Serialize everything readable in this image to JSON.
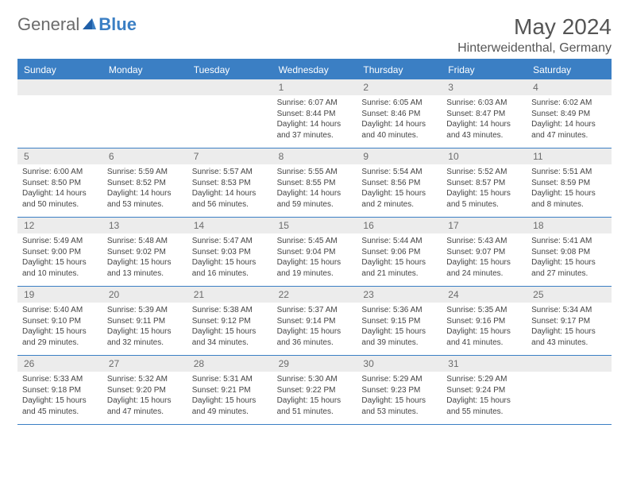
{
  "brand": {
    "part1": "General",
    "part2": "Blue"
  },
  "title": "May 2024",
  "location": "Hinterweidenthal, Germany",
  "colors": {
    "accent": "#3b7fc4",
    "dayHeaderBg": "#ececec",
    "text": "#444444",
    "titleText": "#555555"
  },
  "daysOfWeek": [
    "Sunday",
    "Monday",
    "Tuesday",
    "Wednesday",
    "Thursday",
    "Friday",
    "Saturday"
  ],
  "weeks": [
    [
      {
        "n": "",
        "sunrise": "",
        "sunset": "",
        "daylight": ""
      },
      {
        "n": "",
        "sunrise": "",
        "sunset": "",
        "daylight": ""
      },
      {
        "n": "",
        "sunrise": "",
        "sunset": "",
        "daylight": ""
      },
      {
        "n": "1",
        "sunrise": "Sunrise: 6:07 AM",
        "sunset": "Sunset: 8:44 PM",
        "daylight": "Daylight: 14 hours and 37 minutes."
      },
      {
        "n": "2",
        "sunrise": "Sunrise: 6:05 AM",
        "sunset": "Sunset: 8:46 PM",
        "daylight": "Daylight: 14 hours and 40 minutes."
      },
      {
        "n": "3",
        "sunrise": "Sunrise: 6:03 AM",
        "sunset": "Sunset: 8:47 PM",
        "daylight": "Daylight: 14 hours and 43 minutes."
      },
      {
        "n": "4",
        "sunrise": "Sunrise: 6:02 AM",
        "sunset": "Sunset: 8:49 PM",
        "daylight": "Daylight: 14 hours and 47 minutes."
      }
    ],
    [
      {
        "n": "5",
        "sunrise": "Sunrise: 6:00 AM",
        "sunset": "Sunset: 8:50 PM",
        "daylight": "Daylight: 14 hours and 50 minutes."
      },
      {
        "n": "6",
        "sunrise": "Sunrise: 5:59 AM",
        "sunset": "Sunset: 8:52 PM",
        "daylight": "Daylight: 14 hours and 53 minutes."
      },
      {
        "n": "7",
        "sunrise": "Sunrise: 5:57 AM",
        "sunset": "Sunset: 8:53 PM",
        "daylight": "Daylight: 14 hours and 56 minutes."
      },
      {
        "n": "8",
        "sunrise": "Sunrise: 5:55 AM",
        "sunset": "Sunset: 8:55 PM",
        "daylight": "Daylight: 14 hours and 59 minutes."
      },
      {
        "n": "9",
        "sunrise": "Sunrise: 5:54 AM",
        "sunset": "Sunset: 8:56 PM",
        "daylight": "Daylight: 15 hours and 2 minutes."
      },
      {
        "n": "10",
        "sunrise": "Sunrise: 5:52 AM",
        "sunset": "Sunset: 8:57 PM",
        "daylight": "Daylight: 15 hours and 5 minutes."
      },
      {
        "n": "11",
        "sunrise": "Sunrise: 5:51 AM",
        "sunset": "Sunset: 8:59 PM",
        "daylight": "Daylight: 15 hours and 8 minutes."
      }
    ],
    [
      {
        "n": "12",
        "sunrise": "Sunrise: 5:49 AM",
        "sunset": "Sunset: 9:00 PM",
        "daylight": "Daylight: 15 hours and 10 minutes."
      },
      {
        "n": "13",
        "sunrise": "Sunrise: 5:48 AM",
        "sunset": "Sunset: 9:02 PM",
        "daylight": "Daylight: 15 hours and 13 minutes."
      },
      {
        "n": "14",
        "sunrise": "Sunrise: 5:47 AM",
        "sunset": "Sunset: 9:03 PM",
        "daylight": "Daylight: 15 hours and 16 minutes."
      },
      {
        "n": "15",
        "sunrise": "Sunrise: 5:45 AM",
        "sunset": "Sunset: 9:04 PM",
        "daylight": "Daylight: 15 hours and 19 minutes."
      },
      {
        "n": "16",
        "sunrise": "Sunrise: 5:44 AM",
        "sunset": "Sunset: 9:06 PM",
        "daylight": "Daylight: 15 hours and 21 minutes."
      },
      {
        "n": "17",
        "sunrise": "Sunrise: 5:43 AM",
        "sunset": "Sunset: 9:07 PM",
        "daylight": "Daylight: 15 hours and 24 minutes."
      },
      {
        "n": "18",
        "sunrise": "Sunrise: 5:41 AM",
        "sunset": "Sunset: 9:08 PM",
        "daylight": "Daylight: 15 hours and 27 minutes."
      }
    ],
    [
      {
        "n": "19",
        "sunrise": "Sunrise: 5:40 AM",
        "sunset": "Sunset: 9:10 PM",
        "daylight": "Daylight: 15 hours and 29 minutes."
      },
      {
        "n": "20",
        "sunrise": "Sunrise: 5:39 AM",
        "sunset": "Sunset: 9:11 PM",
        "daylight": "Daylight: 15 hours and 32 minutes."
      },
      {
        "n": "21",
        "sunrise": "Sunrise: 5:38 AM",
        "sunset": "Sunset: 9:12 PM",
        "daylight": "Daylight: 15 hours and 34 minutes."
      },
      {
        "n": "22",
        "sunrise": "Sunrise: 5:37 AM",
        "sunset": "Sunset: 9:14 PM",
        "daylight": "Daylight: 15 hours and 36 minutes."
      },
      {
        "n": "23",
        "sunrise": "Sunrise: 5:36 AM",
        "sunset": "Sunset: 9:15 PM",
        "daylight": "Daylight: 15 hours and 39 minutes."
      },
      {
        "n": "24",
        "sunrise": "Sunrise: 5:35 AM",
        "sunset": "Sunset: 9:16 PM",
        "daylight": "Daylight: 15 hours and 41 minutes."
      },
      {
        "n": "25",
        "sunrise": "Sunrise: 5:34 AM",
        "sunset": "Sunset: 9:17 PM",
        "daylight": "Daylight: 15 hours and 43 minutes."
      }
    ],
    [
      {
        "n": "26",
        "sunrise": "Sunrise: 5:33 AM",
        "sunset": "Sunset: 9:18 PM",
        "daylight": "Daylight: 15 hours and 45 minutes."
      },
      {
        "n": "27",
        "sunrise": "Sunrise: 5:32 AM",
        "sunset": "Sunset: 9:20 PM",
        "daylight": "Daylight: 15 hours and 47 minutes."
      },
      {
        "n": "28",
        "sunrise": "Sunrise: 5:31 AM",
        "sunset": "Sunset: 9:21 PM",
        "daylight": "Daylight: 15 hours and 49 minutes."
      },
      {
        "n": "29",
        "sunrise": "Sunrise: 5:30 AM",
        "sunset": "Sunset: 9:22 PM",
        "daylight": "Daylight: 15 hours and 51 minutes."
      },
      {
        "n": "30",
        "sunrise": "Sunrise: 5:29 AM",
        "sunset": "Sunset: 9:23 PM",
        "daylight": "Daylight: 15 hours and 53 minutes."
      },
      {
        "n": "31",
        "sunrise": "Sunrise: 5:29 AM",
        "sunset": "Sunset: 9:24 PM",
        "daylight": "Daylight: 15 hours and 55 minutes."
      },
      {
        "n": "",
        "sunrise": "",
        "sunset": "",
        "daylight": ""
      }
    ]
  ]
}
